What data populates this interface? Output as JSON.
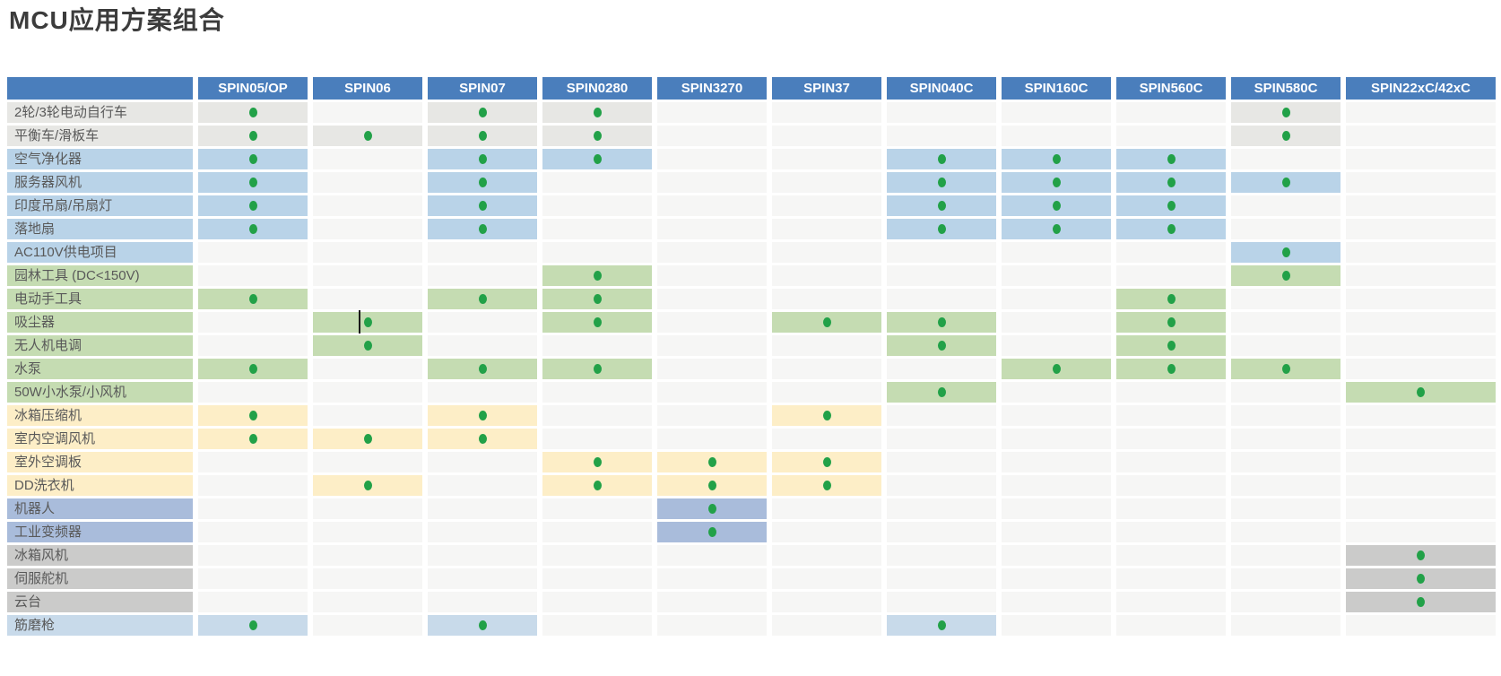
{
  "page_title": "MCU应用方案组合",
  "chart_data": {
    "type": "table",
    "title": "MCU应用方案组合",
    "marker_meaning": "green dot = MCU supports this application",
    "columns": [
      "SPIN05/OP",
      "SPIN06",
      "SPIN07",
      "SPIN0280",
      "SPIN3270",
      "SPIN37",
      "SPIN040C",
      "SPIN160C",
      "SPIN560C",
      "SPIN580C",
      "SPIN22xC/42xC"
    ],
    "rows": [
      {
        "label": "2轮/3轮电动自行车",
        "category": "gray",
        "dots": [
          1,
          0,
          1,
          1,
          0,
          0,
          0,
          0,
          0,
          1,
          0
        ]
      },
      {
        "label": "平衡车/滑板车",
        "category": "gray",
        "dots": [
          1,
          1,
          1,
          1,
          0,
          0,
          0,
          0,
          0,
          1,
          0
        ]
      },
      {
        "label": "空气净化器",
        "category": "blue",
        "dots": [
          1,
          0,
          1,
          1,
          0,
          0,
          1,
          1,
          1,
          0,
          0
        ]
      },
      {
        "label": "服务器风机",
        "category": "blue",
        "dots": [
          1,
          0,
          1,
          0,
          0,
          0,
          1,
          1,
          1,
          1,
          0
        ]
      },
      {
        "label": "印度吊扇/吊扇灯",
        "category": "blue",
        "dots": [
          1,
          0,
          1,
          0,
          0,
          0,
          1,
          1,
          1,
          0,
          0
        ]
      },
      {
        "label": "落地扇",
        "category": "blue",
        "dots": [
          1,
          0,
          1,
          0,
          0,
          0,
          1,
          1,
          1,
          0,
          0
        ]
      },
      {
        "label": "AC110V供电项目",
        "category": "blue",
        "dots": [
          0,
          0,
          0,
          0,
          0,
          0,
          0,
          0,
          0,
          1,
          0
        ]
      },
      {
        "label": "园林工具 (DC<150V)",
        "category": "green",
        "dots": [
          0,
          0,
          0,
          1,
          0,
          0,
          0,
          0,
          0,
          1,
          0
        ]
      },
      {
        "label": "电动手工具",
        "category": "green",
        "dots": [
          1,
          0,
          1,
          1,
          0,
          0,
          0,
          0,
          1,
          0,
          0
        ]
      },
      {
        "label": "吸尘器",
        "category": "green",
        "dots": [
          0,
          1,
          0,
          1,
          0,
          1,
          1,
          0,
          1,
          0,
          0
        ]
      },
      {
        "label": "无人机电调",
        "category": "green",
        "dots": [
          0,
          1,
          0,
          0,
          0,
          0,
          1,
          0,
          1,
          0,
          0
        ]
      },
      {
        "label": "水泵",
        "category": "green",
        "dots": [
          1,
          0,
          1,
          1,
          0,
          0,
          0,
          1,
          1,
          1,
          0
        ]
      },
      {
        "label": "50W小水泵/小风机",
        "category": "green",
        "dots": [
          0,
          0,
          0,
          0,
          0,
          0,
          1,
          0,
          0,
          0,
          1
        ]
      },
      {
        "label": "冰箱压缩机",
        "category": "yellow",
        "dots": [
          1,
          0,
          1,
          0,
          0,
          1,
          0,
          0,
          0,
          0,
          0
        ]
      },
      {
        "label": "室内空调风机",
        "category": "yellow",
        "dots": [
          1,
          1,
          1,
          0,
          0,
          0,
          0,
          0,
          0,
          0,
          0
        ]
      },
      {
        "label": "室外空调板",
        "category": "yellow",
        "dots": [
          0,
          0,
          0,
          1,
          1,
          1,
          0,
          0,
          0,
          0,
          0
        ]
      },
      {
        "label": "DD洗衣机",
        "category": "yellow",
        "dots": [
          0,
          1,
          0,
          1,
          1,
          1,
          0,
          0,
          0,
          0,
          0
        ]
      },
      {
        "label": "机器人",
        "category": "periwinkle",
        "dots": [
          0,
          0,
          0,
          0,
          1,
          0,
          0,
          0,
          0,
          0,
          0
        ]
      },
      {
        "label": "工业变频器",
        "category": "periwinkle",
        "dots": [
          0,
          0,
          0,
          0,
          1,
          0,
          0,
          0,
          0,
          0,
          0
        ]
      },
      {
        "label": "冰箱风机",
        "category": "darkgray",
        "dots": [
          0,
          0,
          0,
          0,
          0,
          0,
          0,
          0,
          0,
          0,
          1
        ]
      },
      {
        "label": "伺服舵机",
        "category": "darkgray",
        "dots": [
          0,
          0,
          0,
          0,
          0,
          0,
          0,
          0,
          0,
          0,
          1
        ]
      },
      {
        "label": "云台",
        "category": "darkgray",
        "dots": [
          0,
          0,
          0,
          0,
          0,
          0,
          0,
          0,
          0,
          0,
          1
        ]
      },
      {
        "label": "筋磨枪",
        "category": "lightblue",
        "dots": [
          1,
          0,
          1,
          0,
          0,
          0,
          1,
          0,
          0,
          0,
          0
        ]
      }
    ]
  },
  "artifacts": {
    "text_caret": {
      "row_index": 9,
      "col_index": 1
    }
  },
  "colors": {
    "header_bg": "#4a7ebc",
    "header_text": "#ffffff",
    "dot": "#22a148",
    "empty_cell": "#f6f6f5",
    "label_text": "#595959",
    "title_text": "#3c3c3c",
    "categories": {
      "gray": "#e7e7e4",
      "blue": "#b9d3e8",
      "green": "#c5dcb2",
      "yellow": "#fdeec7",
      "periwinkle": "#a9bcdb",
      "darkgray": "#cbcbca",
      "lightblue": "#c8daea"
    }
  }
}
